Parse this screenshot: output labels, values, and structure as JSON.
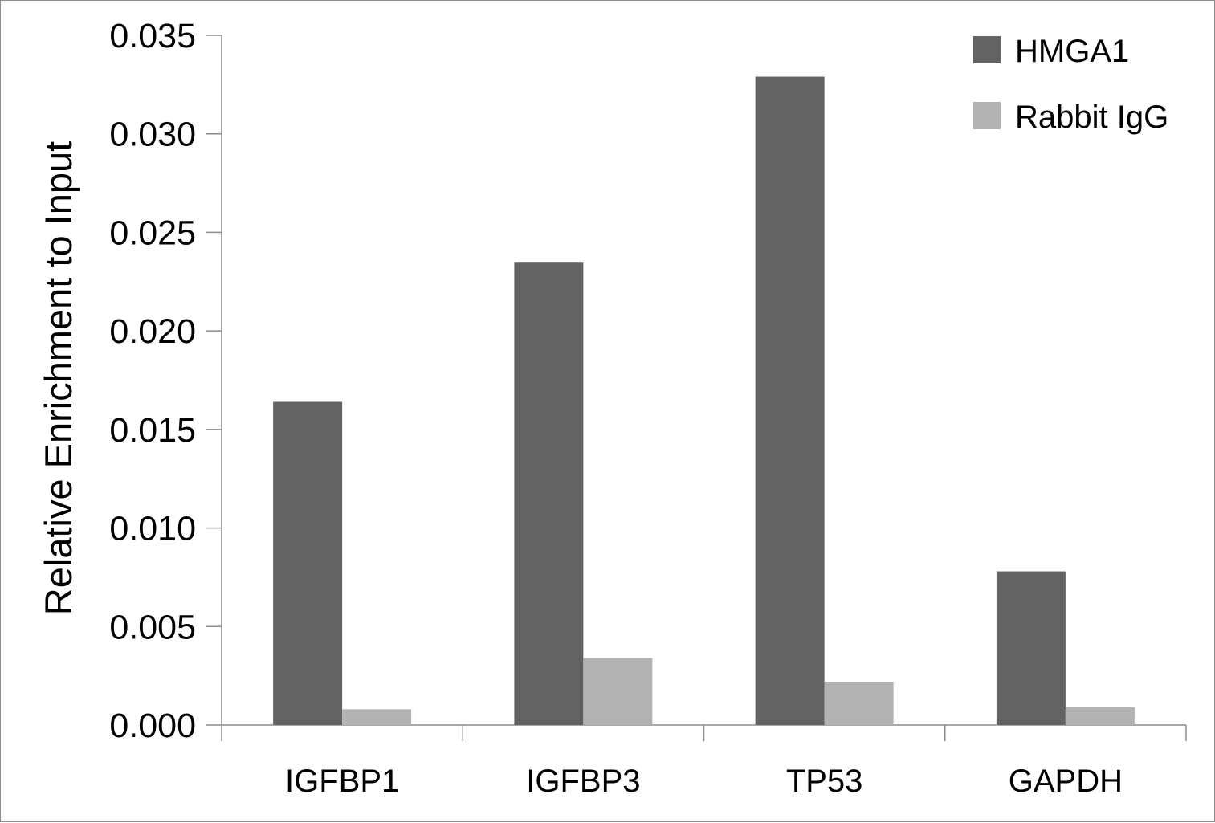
{
  "chart_data": {
    "type": "bar",
    "categories": [
      "IGFBP1",
      "IGFBP3",
      "TP53",
      "GAPDH"
    ],
    "series": [
      {
        "name": "HMGA1",
        "values": [
          0.0164,
          0.0235,
          0.0329,
          0.0078
        ],
        "color": "#636363"
      },
      {
        "name": "Rabbit IgG",
        "values": [
          0.0008,
          0.0034,
          0.0022,
          0.0009
        ],
        "color": "#b3b3b3"
      }
    ],
    "ylabel": "Relative Enrichment to Input",
    "xlabel": "",
    "ylim": [
      0,
      0.035
    ],
    "yticks": [
      "0.000",
      "0.005",
      "0.010",
      "0.015",
      "0.020",
      "0.025",
      "0.030",
      "0.035"
    ],
    "grid": false,
    "legend_position": "top-right"
  }
}
